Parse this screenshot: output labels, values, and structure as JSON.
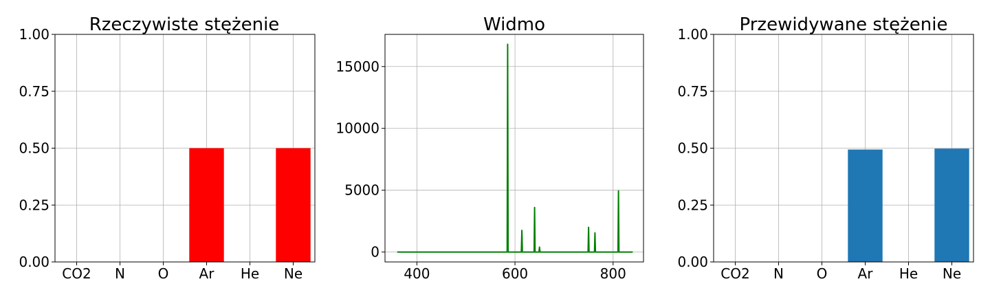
{
  "chart_data": [
    {
      "type": "bar",
      "title": "Rzeczywiste stężenie",
      "categories": [
        "CO2",
        "N",
        "O",
        "Ar",
        "He",
        "Ne"
      ],
      "values": [
        0,
        0,
        0,
        0.5,
        0,
        0.5
      ],
      "ylim": [
        0,
        1
      ],
      "yticks": [
        "0.00",
        "0.25",
        "0.50",
        "0.75",
        "1.00"
      ],
      "color": "#ff0000",
      "grid": true,
      "xlabel": "",
      "ylabel": ""
    },
    {
      "type": "line",
      "title": "Widmo",
      "xlim": [
        335,
        862
      ],
      "ylim": [
        -800,
        17600
      ],
      "xticks": [
        "400",
        "600",
        "800"
      ],
      "yticks": [
        "0",
        "5000",
        "10000",
        "15000"
      ],
      "color": "#008000",
      "grid": true,
      "x_range": [
        360,
        840
      ],
      "baseline": 0,
      "peaks": [
        {
          "x": 585,
          "y": 16800
        },
        {
          "x": 614,
          "y": 1750
        },
        {
          "x": 640,
          "y": 3600
        },
        {
          "x": 650,
          "y": 400
        },
        {
          "x": 750,
          "y": 2000
        },
        {
          "x": 763,
          "y": 1550
        },
        {
          "x": 811,
          "y": 4950
        }
      ],
      "xlabel": "",
      "ylabel": ""
    },
    {
      "type": "bar",
      "title": "Przewidywane stężenie",
      "categories": [
        "CO2",
        "N",
        "O",
        "Ar",
        "He",
        "Ne"
      ],
      "values": [
        0,
        0,
        0,
        0.494,
        0,
        0.498
      ],
      "ylim": [
        0,
        1
      ],
      "yticks": [
        "0.00",
        "0.25",
        "0.50",
        "0.75",
        "1.00"
      ],
      "color": "#1f77b4",
      "grid": true,
      "xlabel": "",
      "ylabel": ""
    }
  ]
}
